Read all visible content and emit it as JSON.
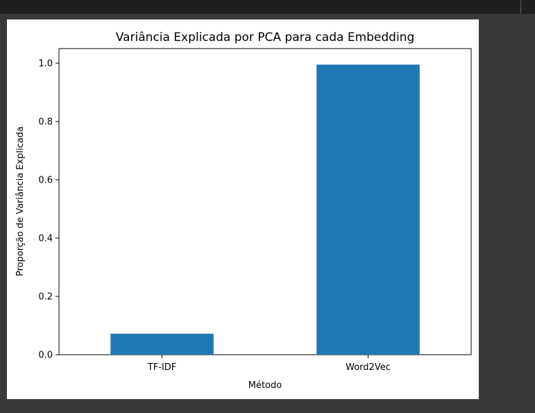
{
  "colors": {
    "background": "#383838",
    "top_strip": "#1f1f1f",
    "figure_bg": "#ffffff",
    "bar": "#1f77b4"
  },
  "chart_data": {
    "type": "bar",
    "title": "Variância Explicada por PCA para cada Embedding",
    "xlabel": "Método",
    "ylabel": "Proporção de Variância Explicada",
    "categories": [
      "TF-IDF",
      "Word2Vec"
    ],
    "values": [
      0.072,
      0.995
    ],
    "ylim": [
      0,
      1.05
    ],
    "yticks": [
      "0.0",
      "0.2",
      "0.4",
      "0.6",
      "0.8",
      "1.0"
    ],
    "ytick_values": [
      0,
      0.2,
      0.4,
      0.6,
      0.8,
      1.0
    ],
    "grid": false,
    "legend": "none"
  }
}
